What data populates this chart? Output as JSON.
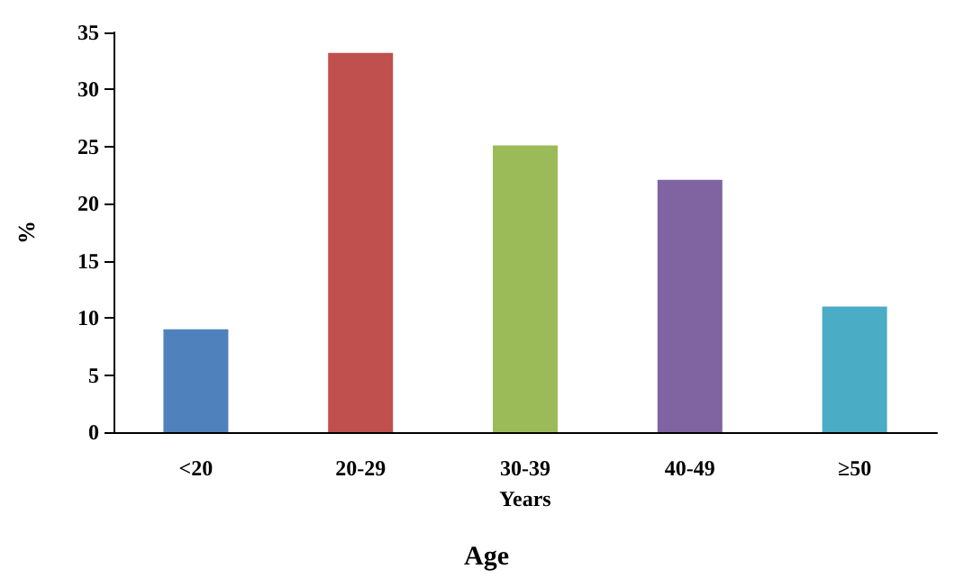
{
  "chart_data": {
    "type": "bar",
    "title": "Age",
    "xlabel": "Years",
    "ylabel": "%",
    "categories": [
      "<20",
      "20-29",
      "30-39",
      "40-49",
      "≥50"
    ],
    "values": [
      9,
      33.2,
      25.1,
      22.1,
      11
    ],
    "colors": [
      "#4f81bd",
      "#c0504d",
      "#9bbb59",
      "#8064a2",
      "#4bacc6"
    ],
    "ylim": [
      0,
      35
    ],
    "yticks": [
      0,
      5,
      10,
      15,
      20,
      25,
      30,
      35
    ],
    "grid": false
  }
}
